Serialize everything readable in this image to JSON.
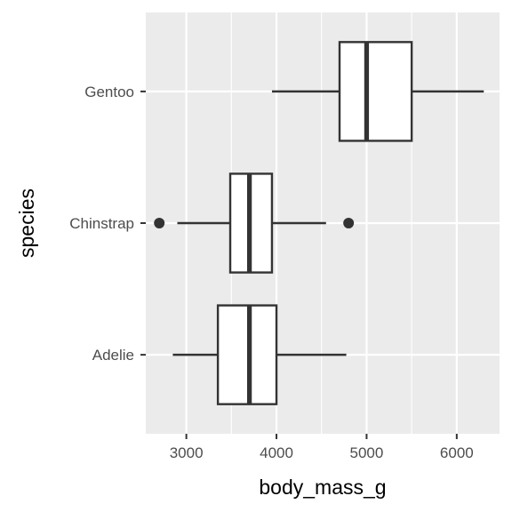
{
  "chart_data": {
    "type": "boxplot",
    "orientation": "horizontal",
    "xlabel": "body_mass_g",
    "ylabel": "species",
    "xlim": [
      2550,
      6475
    ],
    "x_ticks": [
      3000,
      4000,
      5000,
      6000
    ],
    "x_minor_ticks": [
      3500,
      4500,
      5500
    ],
    "grid": true,
    "categories": [
      "Adelie",
      "Chinstrap",
      "Gentoo"
    ],
    "boxes": [
      {
        "category": "Adelie",
        "whisker_low": 2850,
        "q1": 3350,
        "median": 3700,
        "q3": 4000,
        "whisker_high": 4775,
        "outliers": []
      },
      {
        "category": "Chinstrap",
        "whisker_low": 2900,
        "q1": 3487,
        "median": 3700,
        "q3": 3950,
        "whisker_high": 4550,
        "outliers": [
          2700,
          4800
        ]
      },
      {
        "category": "Gentoo",
        "whisker_low": 3950,
        "q1": 4700,
        "median": 5000,
        "q3": 5500,
        "whisker_high": 6300,
        "outliers": []
      }
    ],
    "colors": {
      "panel": "#ebebeb",
      "grid": "#ffffff",
      "box_fill": "#ffffff",
      "box_line": "#333333",
      "tick": "#333333"
    }
  }
}
